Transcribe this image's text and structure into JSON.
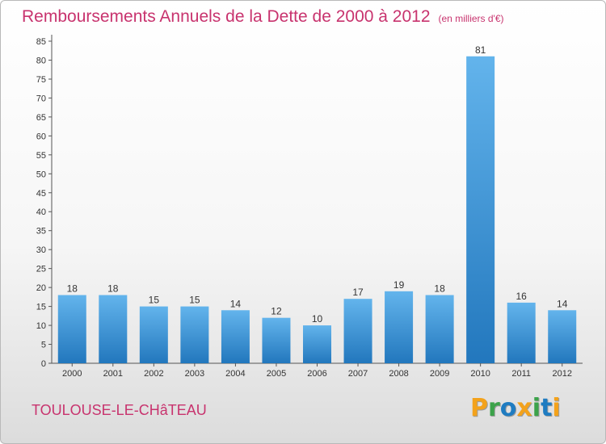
{
  "title": "Remboursements Annuels de la Dette de 2000 à 2012",
  "unit": "(en milliers d'€)",
  "commune": "TOULOUSE-LE-CHâTEAU",
  "logo": {
    "letters": [
      "P",
      "r",
      "o",
      "x",
      "i",
      "t",
      "i"
    ],
    "colors": [
      "#f3a21b",
      "#3ca34a",
      "#1f7cc1",
      "#f3a21b",
      "#3ca34a",
      "#1f7cc1",
      "#f3a21b"
    ]
  },
  "colors": {
    "bar_top": "#63b4ec",
    "bar_bottom": "#2277bd",
    "title": "#c8336e"
  },
  "chart_data": {
    "type": "bar",
    "title": "Remboursements Annuels de la Dette de 2000 à 2012",
    "xlabel": "",
    "ylabel": "",
    "categories": [
      "2000",
      "2001",
      "2002",
      "2003",
      "2004",
      "2005",
      "2006",
      "2007",
      "2008",
      "2009",
      "2010",
      "2011",
      "2012"
    ],
    "values": [
      18,
      18,
      15,
      15,
      14,
      12,
      10,
      17,
      19,
      18,
      81,
      16,
      14
    ],
    "yticks": [
      0,
      5,
      10,
      15,
      20,
      25,
      30,
      35,
      40,
      45,
      50,
      55,
      60,
      65,
      70,
      75,
      80,
      85
    ],
    "ylim": [
      0,
      85
    ],
    "grid": false,
    "legend": "none"
  }
}
